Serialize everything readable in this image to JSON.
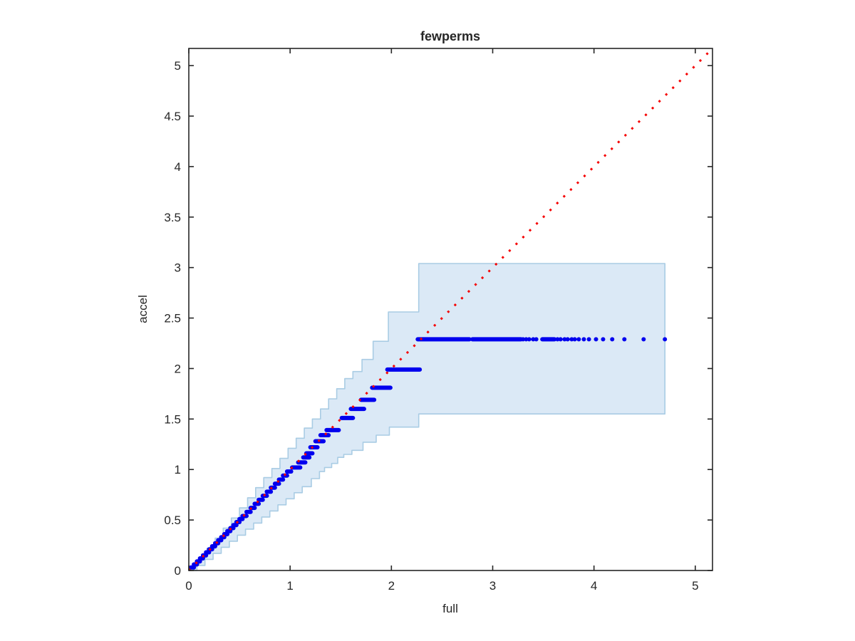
{
  "title": "fewperms",
  "chart_data": {
    "type": "scatter",
    "title": "fewperms",
    "xlabel": "full",
    "ylabel": "accel",
    "xlim": [
      0,
      5.17
    ],
    "ylim": [
      0,
      5.17
    ],
    "grid": false,
    "box": true,
    "x_ticks": {
      "values": [
        0,
        1,
        2,
        3,
        4,
        5
      ],
      "labels": [
        "0",
        "1",
        "2",
        "3",
        "4",
        "5"
      ]
    },
    "y_ticks": {
      "values": [
        0,
        0.5,
        1,
        1.5,
        2,
        2.5,
        3,
        3.5,
        4,
        4.5,
        5
      ],
      "labels": [
        "0",
        "0.5",
        "1",
        "1.5",
        "2",
        "2.5",
        "3",
        "3.5",
        "4",
        "4.5",
        "5"
      ]
    },
    "identity_line": {
      "name": "identity-reference",
      "style": "dotted",
      "color": "#f50000",
      "x": [
        0,
        5.17
      ],
      "y": [
        0,
        5.17
      ]
    },
    "band": {
      "name": "confidence-band",
      "fill_color": "#dbe9f6",
      "edge_color": "#a9cce4",
      "x_end": 4.7,
      "upper_steps": [
        [
          0,
          0
        ],
        [
          0.05,
          0.06
        ],
        [
          0.1,
          0.13
        ],
        [
          0.18,
          0.22
        ],
        [
          0.26,
          0.32
        ],
        [
          0.34,
          0.42
        ],
        [
          0.42,
          0.52
        ],
        [
          0.5,
          0.62
        ],
        [
          0.58,
          0.72
        ],
        [
          0.66,
          0.82
        ],
        [
          0.74,
          0.92
        ],
        [
          0.82,
          1.01
        ],
        [
          0.9,
          1.11
        ],
        [
          0.98,
          1.21
        ],
        [
          1.06,
          1.31
        ],
        [
          1.14,
          1.41
        ],
        [
          1.22,
          1.5
        ],
        [
          1.3,
          1.6
        ],
        [
          1.38,
          1.7
        ],
        [
          1.46,
          1.8
        ],
        [
          1.54,
          1.9
        ],
        [
          1.62,
          1.97
        ],
        [
          1.71,
          2.09
        ],
        [
          1.82,
          2.27
        ],
        [
          1.97,
          2.56
        ],
        [
          2.27,
          3.04
        ],
        [
          4.7,
          3.04
        ]
      ],
      "lower_steps": [
        [
          0,
          0
        ],
        [
          0.08,
          0.05
        ],
        [
          0.16,
          0.11
        ],
        [
          0.24,
          0.17
        ],
        [
          0.32,
          0.23
        ],
        [
          0.4,
          0.29
        ],
        [
          0.48,
          0.35
        ],
        [
          0.56,
          0.41
        ],
        [
          0.64,
          0.47
        ],
        [
          0.72,
          0.53
        ],
        [
          0.8,
          0.59
        ],
        [
          0.88,
          0.65
        ],
        [
          0.96,
          0.71
        ],
        [
          1.04,
          0.77
        ],
        [
          1.12,
          0.83
        ],
        [
          1.21,
          0.91
        ],
        [
          1.29,
          0.98
        ],
        [
          1.34,
          1.02
        ],
        [
          1.41,
          1.06
        ],
        [
          1.47,
          1.12
        ],
        [
          1.53,
          1.15
        ],
        [
          1.61,
          1.19
        ],
        [
          1.72,
          1.27
        ],
        [
          1.85,
          1.34
        ],
        [
          1.98,
          1.42
        ],
        [
          2.27,
          1.55
        ],
        [
          4.7,
          1.55
        ]
      ]
    },
    "series": [
      {
        "name": "accel-vs-full-quantiles",
        "marker": "point",
        "color": "#0000ee",
        "marker_px": 6,
        "runs": [
          [
            0.03,
            0.02,
            0.05
          ],
          [
            0.06,
            0.05,
            0.08
          ],
          [
            0.09,
            0.08,
            0.11
          ],
          [
            0.12,
            0.11,
            0.14
          ],
          [
            0.15,
            0.14,
            0.17
          ],
          [
            0.18,
            0.17,
            0.2
          ],
          [
            0.21,
            0.2,
            0.23
          ],
          [
            0.24,
            0.23,
            0.26
          ],
          [
            0.27,
            0.26,
            0.29
          ],
          [
            0.3,
            0.29,
            0.32
          ],
          [
            0.33,
            0.32,
            0.35
          ],
          [
            0.36,
            0.35,
            0.38
          ],
          [
            0.39,
            0.38,
            0.41
          ],
          [
            0.42,
            0.41,
            0.44
          ],
          [
            0.45,
            0.44,
            0.47
          ],
          [
            0.48,
            0.47,
            0.5
          ],
          [
            0.51,
            0.5,
            0.53
          ],
          [
            0.54,
            0.53,
            0.57
          ],
          [
            0.58,
            0.57,
            0.61
          ],
          [
            0.62,
            0.61,
            0.65
          ],
          [
            0.66,
            0.65,
            0.69
          ],
          [
            0.7,
            0.69,
            0.73
          ],
          [
            0.74,
            0.73,
            0.77
          ],
          [
            0.78,
            0.77,
            0.81
          ],
          [
            0.82,
            0.81,
            0.85
          ],
          [
            0.86,
            0.85,
            0.89
          ],
          [
            0.9,
            0.89,
            0.93
          ],
          [
            0.94,
            0.93,
            0.97
          ],
          [
            0.98,
            0.97,
            1.01
          ],
          [
            1.02,
            1.02,
            1.1
          ],
          [
            1.07,
            1.08,
            1.15
          ],
          [
            1.12,
            1.13,
            1.19
          ],
          [
            1.16,
            1.16,
            1.22
          ],
          [
            1.22,
            1.2,
            1.27
          ],
          [
            1.28,
            1.25,
            1.33
          ],
          [
            1.34,
            1.3,
            1.38
          ],
          [
            1.39,
            1.36,
            1.48
          ],
          [
            1.51,
            1.51,
            1.62
          ],
          [
            1.6,
            1.6,
            1.73
          ],
          [
            1.69,
            1.7,
            1.83
          ],
          [
            1.81,
            1.81,
            1.99
          ],
          [
            1.99,
            1.96,
            2.28
          ],
          [
            2.29,
            2.26,
            2.77
          ],
          [
            2.29,
            2.8,
            3.28
          ],
          [
            2.29,
            3.49,
            3.61
          ]
        ],
        "tail_points_y": 2.29,
        "tail_points_x": [
          3.3,
          3.33,
          3.36,
          3.4,
          3.43,
          3.64,
          3.67,
          3.71,
          3.74,
          3.78,
          3.81,
          3.85,
          3.9,
          3.95,
          4.02,
          4.09,
          4.18,
          4.3,
          4.49,
          4.7
        ]
      }
    ],
    "axis_color": "#262626"
  }
}
